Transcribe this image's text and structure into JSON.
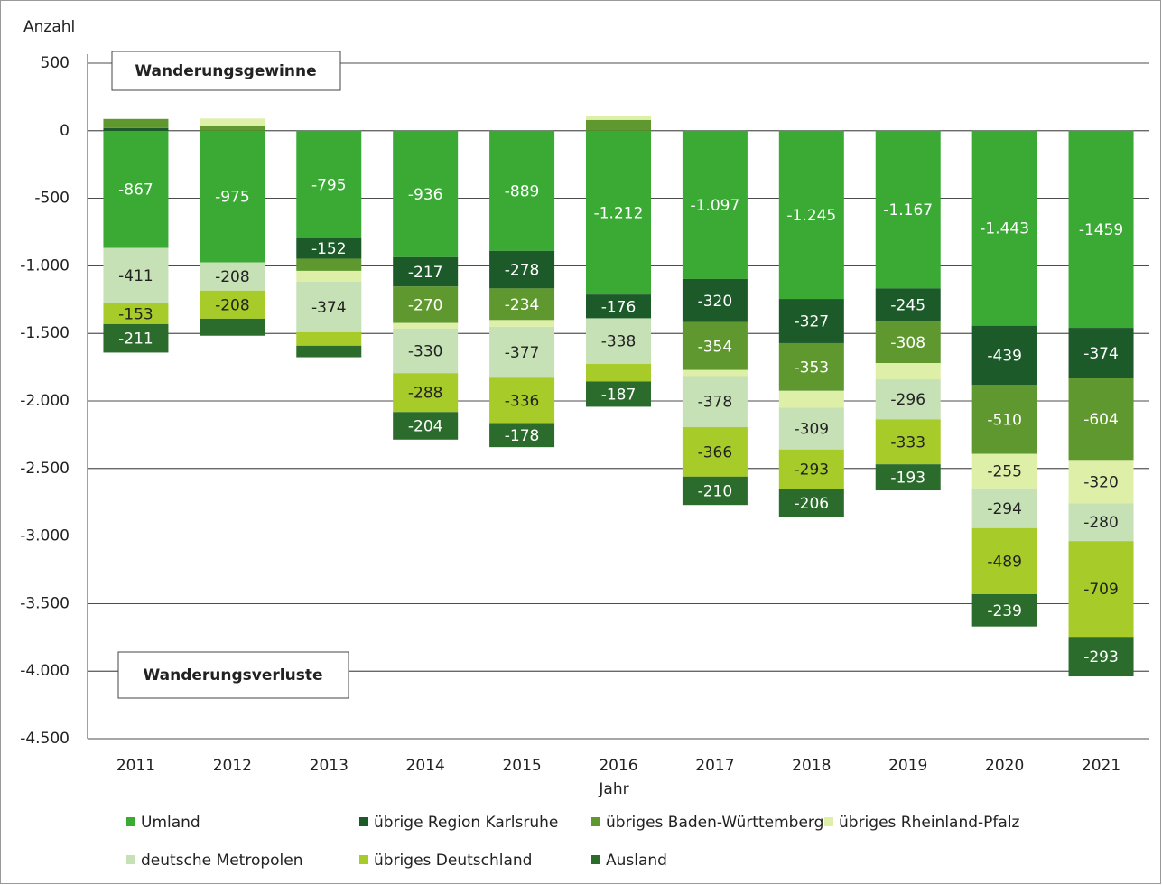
{
  "chart_data": {
    "type": "stacked_bar",
    "y_label": "Anzahl",
    "x_label": "Jahr",
    "annotations": [
      "Wanderungsgewinne",
      "Wanderungsverluste"
    ],
    "categories": [
      "2011",
      "2012",
      "2013",
      "2014",
      "2015",
      "2016",
      "2017",
      "2018",
      "2019",
      "2020",
      "2021"
    ],
    "ylim": [
      -4500,
      500
    ],
    "yticks": [
      500,
      0,
      -500,
      {
        "value": -1000,
        "label": "-1.000"
      },
      {
        "value": -1500,
        "label": "-1.500"
      },
      {
        "value": -2000,
        "label": "-2.000"
      },
      {
        "value": -2500,
        "label": "-2.500"
      },
      {
        "value": -3000,
        "label": "-3.000"
      },
      {
        "value": -3500,
        "label": "-3.500"
      },
      {
        "value": -4000,
        "label": "-4.000"
      },
      {
        "value": -4500,
        "label": "-4.500"
      }
    ],
    "grid": true,
    "series": [
      {
        "name": "Umland",
        "color": "#3aaa35",
        "values": [
          -867,
          -975,
          -795,
          -936,
          -889,
          -1212,
          -1097,
          -1245,
          -1167,
          -1443,
          -1459
        ],
        "value_labels": [
          "-867",
          "-975",
          "-795",
          "-936",
          "-889",
          "-1.212",
          "-1.097",
          "-1.245",
          "-1.167",
          "-1.443",
          "-1459"
        ]
      },
      {
        "name": "übrige Region Karlsruhe",
        "color": "#1d5a2a",
        "values": [
          20,
          0,
          -152,
          -217,
          -278,
          -176,
          -320,
          -327,
          -245,
          -439,
          -374
        ],
        "value_labels": [
          null,
          null,
          "-152",
          "-217",
          "-278",
          "-176",
          "-320",
          "-327",
          "-245",
          "-439",
          "-374"
        ]
      },
      {
        "name": "übriges Baden-Württemberg",
        "color": "#5f982f",
        "values": [
          67,
          35,
          -90,
          -270,
          -234,
          80,
          -354,
          -353,
          -308,
          -510,
          -604
        ],
        "value_labels": [
          null,
          null,
          null,
          "-270",
          "-234",
          null,
          "-354",
          "-353",
          "-308",
          "-510",
          "-604"
        ]
      },
      {
        "name": "übriges Rheinland-Pfalz",
        "color": "#def0a8",
        "values": [
          0,
          55,
          -80,
          -41,
          -50,
          30,
          -45,
          -125,
          -120,
          -255,
          -320
        ],
        "value_labels": [
          null,
          null,
          null,
          null,
          null,
          null,
          null,
          null,
          null,
          "-255",
          "-320"
        ]
      },
      {
        "name": "deutsche Metropolen",
        "color": "#c6e1b6",
        "values": [
          -411,
          -208,
          -374,
          -330,
          -377,
          -338,
          -378,
          -309,
          -296,
          -294,
          -280
        ],
        "value_labels": [
          "-411",
          "-208",
          "-374",
          "-330",
          "-377",
          "-338",
          "-378",
          "-309",
          "-296",
          "-294",
          "-280"
        ]
      },
      {
        "name": "übriges Deutschland",
        "color": "#a7cc29",
        "values": [
          -153,
          -208,
          -100,
          -288,
          -336,
          -130,
          -366,
          -293,
          -333,
          -489,
          -709
        ],
        "value_labels": [
          "-153",
          "-208",
          null,
          "-288",
          "-336",
          null,
          "-366",
          "-293",
          "-333",
          "-489",
          "-709"
        ]
      },
      {
        "name": "Ausland",
        "color": "#2b6c2c",
        "values": [
          -211,
          -126,
          -85,
          -204,
          -178,
          -187,
          -210,
          -206,
          -193,
          -239,
          -293
        ],
        "value_labels": [
          "-211",
          null,
          null,
          "-204",
          "-178",
          "-187",
          "-210",
          "-206",
          "-193",
          "-239",
          "-293"
        ]
      }
    ]
  }
}
